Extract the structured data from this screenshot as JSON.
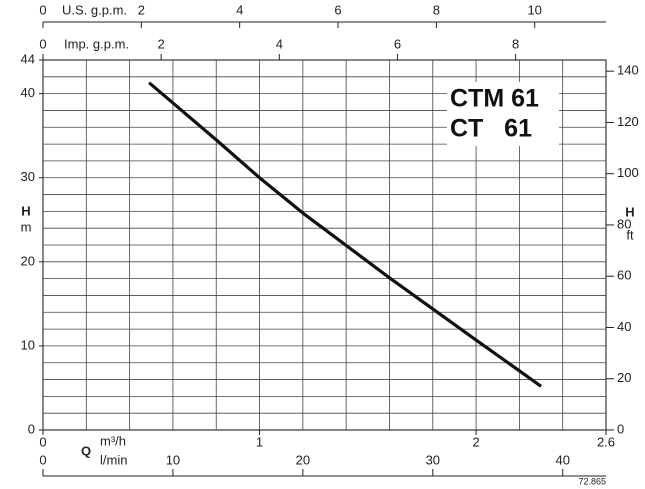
{
  "chart_data": {
    "type": "line",
    "title_lines": [
      "CTM 61",
      "CT   61"
    ],
    "code": "72.865",
    "x_label": "Q",
    "x_unit": "m³/h",
    "xlim": [
      0,
      2.6
    ],
    "xticks": [
      0,
      1,
      2,
      2.6
    ],
    "xgrid": [
      0,
      0.2,
      0.4,
      0.6,
      0.8,
      1,
      1.2,
      1.4,
      1.6,
      1.8,
      2,
      2.2,
      2.4,
      2.6
    ],
    "y_label": "H",
    "y_unit": "m",
    "ylim": [
      0,
      44
    ],
    "yticks": [
      0,
      10,
      20,
      30,
      40,
      44
    ],
    "ygrid": [
      0,
      2,
      4,
      6,
      8,
      10,
      12,
      14,
      16,
      18,
      20,
      22,
      24,
      26,
      28,
      30,
      32,
      34,
      36,
      38,
      40,
      42,
      44
    ],
    "y2_label": "H",
    "y2_unit": "ft",
    "y2lim": [
      0,
      144.36
    ],
    "y2ticks": [
      0,
      20,
      40,
      60,
      80,
      100,
      120,
      140
    ],
    "top_axes": [
      {
        "label": "U.S. g.p.m.",
        "xlim": [
          0,
          11.45
        ],
        "xticks": [
          0,
          2,
          4,
          6,
          8,
          10
        ]
      },
      {
        "label": "Imp. g.p.m.",
        "xlim": [
          0,
          9.53
        ],
        "xticks": [
          0,
          2,
          4,
          6,
          8
        ]
      }
    ],
    "bottom_axis2": {
      "label": "l/min",
      "xlim": [
        0,
        43.33
      ],
      "xticks": [
        0,
        10,
        20,
        30,
        40
      ]
    },
    "series": [
      {
        "color": "#111111",
        "x": [
          0.49,
          0.8,
          1,
          1.2,
          1.6,
          2,
          2.3
        ],
        "values": [
          41.3,
          34.5,
          30,
          25.8,
          18.1,
          10.7,
          5.2
        ]
      }
    ]
  }
}
